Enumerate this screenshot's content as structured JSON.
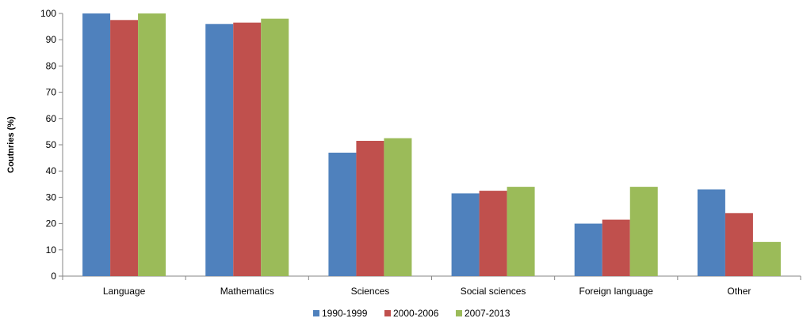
{
  "chart_data": {
    "type": "bar",
    "ylabel": "Coutnries (%)",
    "xlabel": "",
    "ylim": [
      0,
      100
    ],
    "yticks": [
      0,
      10,
      20,
      30,
      40,
      50,
      60,
      70,
      80,
      90,
      100
    ],
    "categories": [
      "Language",
      "Mathematics",
      "Sciences",
      "Social sciences",
      "Foreign language",
      "Other"
    ],
    "series": [
      {
        "name": "1990-1999",
        "color": "#4f81bd",
        "values": [
          100,
          96,
          47,
          31.5,
          20,
          33
        ]
      },
      {
        "name": "2000-2006",
        "color": "#c0504d",
        "values": [
          97.5,
          96.5,
          51.5,
          32.5,
          21.5,
          24
        ]
      },
      {
        "name": "2007-2013",
        "color": "#9bbb59",
        "values": [
          100,
          98,
          52.5,
          34,
          34,
          13
        ]
      }
    ],
    "grid": false,
    "legend_position": "bottom"
  }
}
